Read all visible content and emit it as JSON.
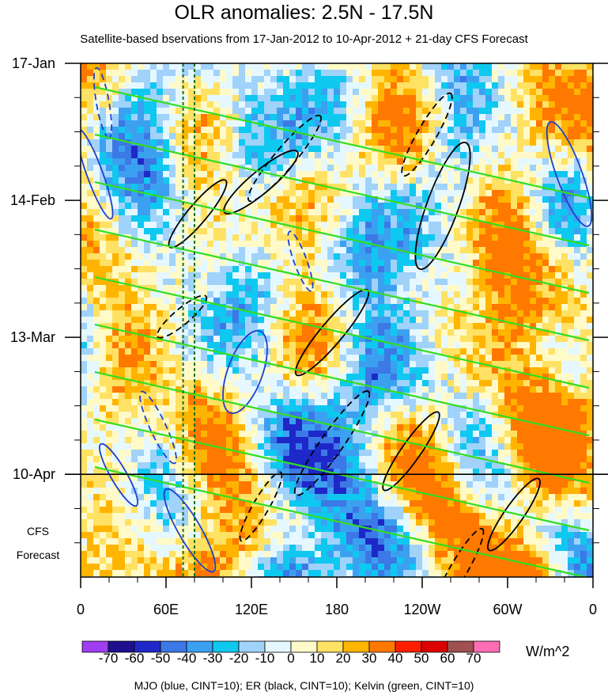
{
  "chart_data": {
    "type": "heatmap",
    "title": "OLR anomalies: 2.5N - 17.5N",
    "subtitle": "Satellite-based bservations from 17-Jan-2012 to 10-Apr-2012 + 21-day CFS Forecast",
    "x_ticks": [
      "0",
      "60E",
      "120E",
      "180",
      "120W",
      "60W",
      "0"
    ],
    "x_tick_lon": [
      0,
      60,
      120,
      180,
      240,
      300,
      360
    ],
    "y_ticks": [
      "17-Jan",
      "14-Feb",
      "13-Mar",
      "10-Apr"
    ],
    "y_tick_day": [
      0,
      28,
      56,
      84
    ],
    "time_range_days": [
      0,
      105
    ],
    "observation_end": "10-Apr",
    "forecast_label": [
      "CFS",
      "Forecast"
    ],
    "colorbar": {
      "levels": [
        "-70",
        "-60",
        "-50",
        "-40",
        "-30",
        "-20",
        "-10",
        "0",
        "10",
        "20",
        "30",
        "40",
        "50",
        "60",
        "70"
      ],
      "colors": [
        "#9e3ef0",
        "#1e0f8f",
        "#1e28c8",
        "#3c78e6",
        "#3ca0f0",
        "#0fc8f0",
        "#a0d2fa",
        "#e6f8ff",
        "#fffac8",
        "#ffe164",
        "#ffb400",
        "#ff7800",
        "#ff1e00",
        "#dc0000",
        "#a05050",
        "#ff6eb4"
      ],
      "units": "W/m^2"
    },
    "reference_lines_lon": [
      72,
      80
    ],
    "legend_text": "MJO (blue, CINT=10); ER (black, CINT=10); Kelvin (green, CINT=10)",
    "series_colors": {
      "MJO": "#1f3fcf",
      "ER": "#000000",
      "Kelvin": "#33dd22"
    }
  }
}
